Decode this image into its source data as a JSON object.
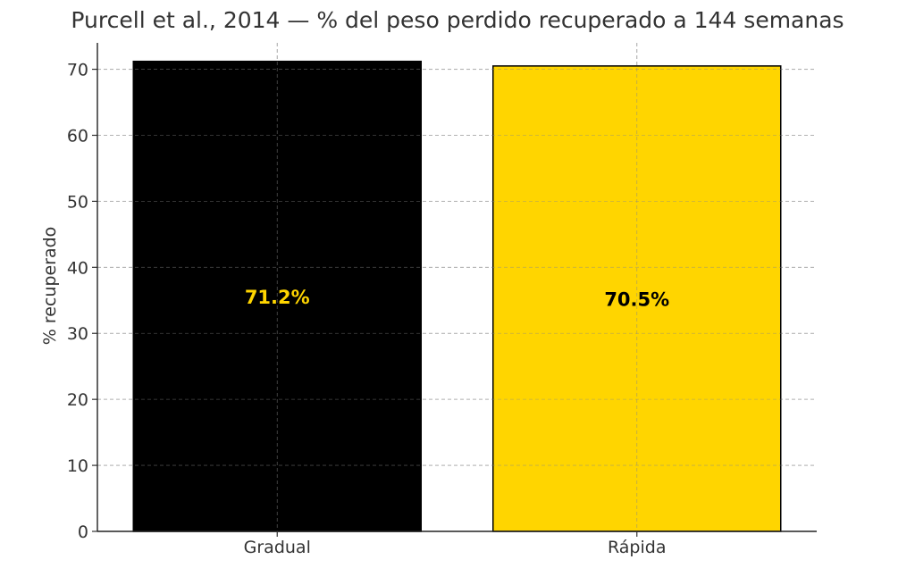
{
  "chart_data": {
    "type": "bar",
    "title": "Purcell et al., 2014 — % del peso perdido recuperado a 144 semanas",
    "xlabel": "",
    "ylabel": "% recuperado",
    "categories": [
      "Gradual",
      "Rápida"
    ],
    "values": [
      71.2,
      70.5
    ],
    "value_labels": [
      "71.2%",
      "70.5%"
    ],
    "ylim": [
      0,
      74
    ],
    "yticks": [
      0,
      10,
      20,
      30,
      40,
      50,
      60,
      70
    ],
    "grid": true,
    "legend": "none",
    "colors": {
      "bars": [
        "#000000",
        "#FFD500"
      ],
      "value_labels": [
        "#FFD500",
        "#000000"
      ],
      "grid": "#cccccc",
      "text": "#333333"
    }
  }
}
